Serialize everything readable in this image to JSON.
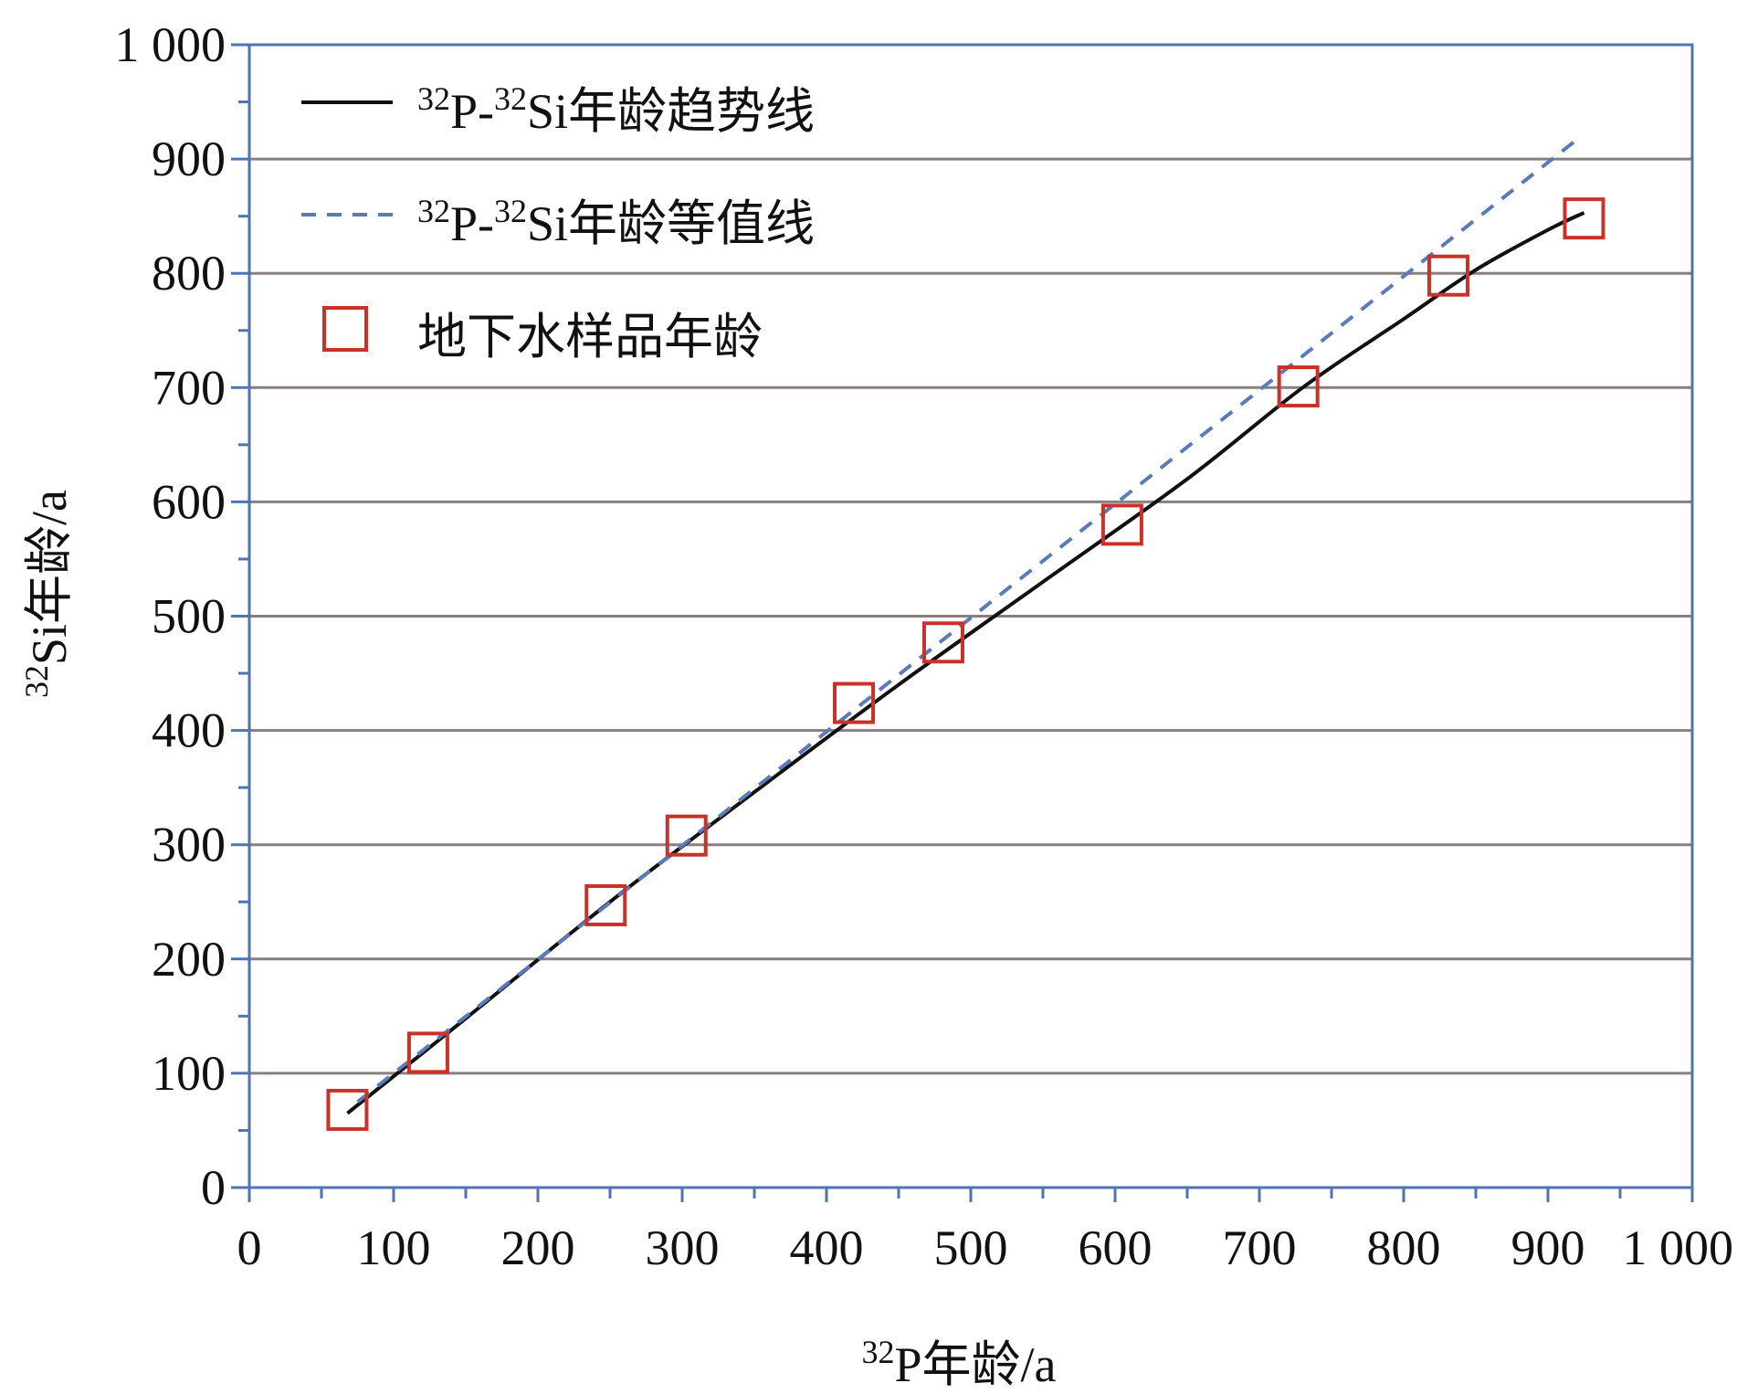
{
  "chart_data": {
    "type": "scatter",
    "xlabel": {
      "prefix_sup": "32",
      "text": "P年龄/a"
    },
    "ylabel": {
      "prefix_sup": "32",
      "text": "Si年龄/a"
    },
    "xlim": [
      0,
      1000
    ],
    "ylim": [
      0,
      1000
    ],
    "x_ticks": [
      0,
      100,
      200,
      300,
      400,
      500,
      600,
      700,
      800,
      900,
      1000
    ],
    "y_ticks": [
      0,
      100,
      200,
      300,
      400,
      500,
      600,
      700,
      800,
      900,
      1000
    ],
    "x_tick_labels": [
      "0",
      "100",
      "200",
      "300",
      "400",
      "500",
      "600",
      "700",
      "800",
      "900",
      "1 000"
    ],
    "y_tick_labels": [
      "0",
      "100",
      "200",
      "300",
      "400",
      "500",
      "600",
      "700",
      "800",
      "900",
      "1 000"
    ],
    "grid": {
      "horizontal": true,
      "vertical": false
    },
    "legend_position": "top-left",
    "colors": {
      "axis": "#4f73b5",
      "grid": "#8a7f7f",
      "trend": "#111111",
      "equal": "#5a7ab8",
      "marker": "#c8322a"
    },
    "series": [
      {
        "name": "32P-32Si年龄趋势线",
        "legend": {
          "sup1": "32",
          "mid": "P-",
          "sup2": "32",
          "tail": "Si年龄趋势线"
        },
        "type": "line",
        "style": "solid",
        "x": [
          68,
          150,
          250,
          350,
          450,
          550,
          650,
          730,
          800,
          850,
          900,
          925
        ],
        "y": [
          65,
          148,
          250,
          346,
          440,
          530,
          620,
          700,
          760,
          803,
          838,
          853
        ]
      },
      {
        "name": "32P-32Si年龄等值线",
        "legend": {
          "sup1": "32",
          "mid": "P-",
          "sup2": "32",
          "tail": "Si年龄等值线"
        },
        "type": "line",
        "style": "dashed",
        "x": [
          75,
          918
        ],
        "y": [
          75,
          915
        ]
      },
      {
        "name": "地下水样品年龄",
        "legend": {
          "tail": "地下水样品年龄"
        },
        "type": "scatter",
        "marker": "square",
        "x": [
          68,
          124,
          247,
          303,
          419,
          481,
          605,
          727,
          831,
          925
        ],
        "y": [
          68,
          118,
          247,
          308,
          424,
          477,
          580,
          701,
          798,
          848
        ]
      }
    ]
  }
}
